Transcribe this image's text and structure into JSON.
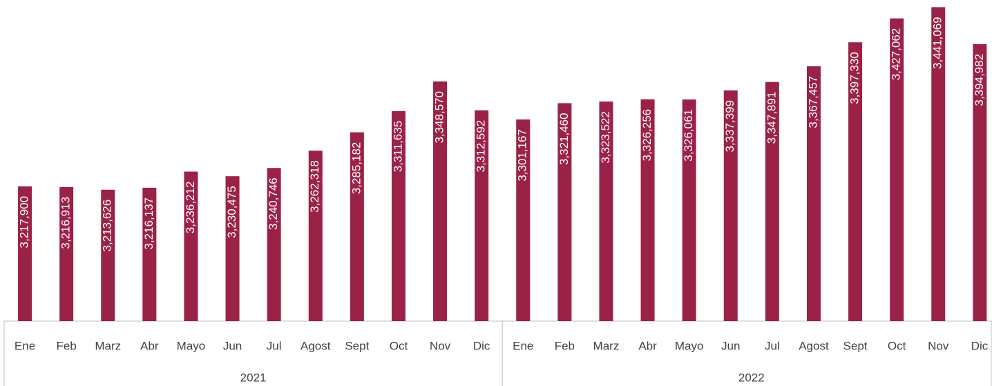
{
  "chart_data": {
    "type": "bar",
    "categories": [
      "Ene",
      "Feb",
      "Marz",
      "Abr",
      "Mayo",
      "Jun",
      "Jul",
      "Agost",
      "Sept",
      "Oct",
      "Nov",
      "Dic",
      "Ene",
      "Feb",
      "Marz",
      "Abr",
      "Mayo",
      "Jun",
      "Jul",
      "Agost",
      "Sept",
      "Oct",
      "Nov",
      "Dic"
    ],
    "groups": [
      "2021",
      "2022"
    ],
    "values": [
      3217900,
      3216913,
      3213626,
      3216137,
      3236212,
      3230475,
      3240746,
      3262318,
      3285182,
      3311635,
      3348570,
      3312592,
      3301167,
      3321460,
      3323522,
      3326256,
      3326061,
      3337399,
      3347891,
      3367457,
      3397330,
      3427062,
      3441069,
      3394982
    ],
    "value_labels": [
      "3,217,900",
      "3,216,913",
      "3,213,626",
      "3,216,137",
      "3,236,212",
      "3,230,475",
      "3,240,746",
      "3,262,318",
      "3,285,182",
      "3,311,635",
      "3,348,570",
      "3,312,592",
      "3,301,167",
      "3,321,460",
      "3,323,522",
      "3,326,256",
      "3,326,061",
      "3,337,399",
      "3,347,891",
      "3,367,457",
      "3,397,330",
      "3,427,062",
      "3,441,069",
      "3,394,982"
    ],
    "color": "#9b2247",
    "ylim": [
      3050000,
      3450000
    ]
  }
}
